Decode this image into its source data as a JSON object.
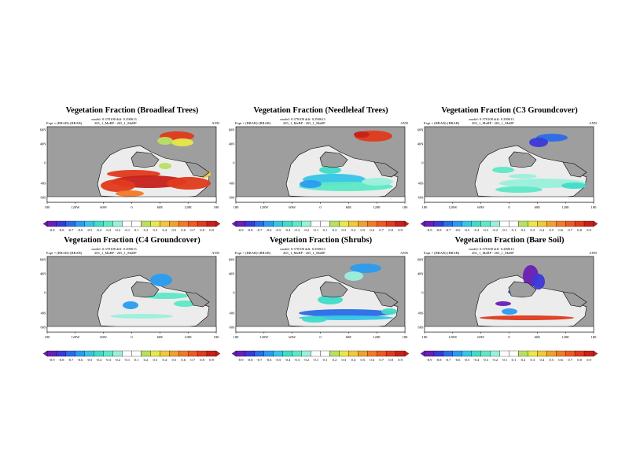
{
  "common": {
    "model_line": "model: 0.370108 diff: 0.290613",
    "expt_label": "Expt = (BRAB)-(BRAB)",
    "case_name": "265_1_MaBP - 265_1_MaBP",
    "period": "ANN",
    "lat_ticks": [
      "60N",
      "40N",
      "0",
      "40S",
      "60S"
    ],
    "lon_ticks": [
      "180",
      "120W",
      "60W",
      "0",
      "60E",
      "120E",
      "180"
    ],
    "colorbar_labels": [
      "-0.9",
      "-0.8",
      "-0.7",
      "-0.6",
      "-0.5",
      "-0.4",
      "-0.3",
      "-0.2",
      "-0.1",
      "0.1",
      "0.2",
      "0.3",
      "0.4",
      "0.5",
      "0.6",
      "0.7",
      "0.8",
      "0.9"
    ],
    "colorbar_colors": [
      "#6a1fb5",
      "#3a3ad8",
      "#2a6ce8",
      "#2a9cf0",
      "#35c5e6",
      "#40dcc8",
      "#5ee8c6",
      "#9af0dc",
      "#ffffff",
      "#ffffff",
      "#b8e060",
      "#e8e84a",
      "#f0c83a",
      "#f0a030",
      "#f07a28",
      "#ec5a22",
      "#e03a1c",
      "#c8201a"
    ],
    "ocean_color": "#9e9e9e",
    "land_color": "#ececec"
  },
  "panels": [
    {
      "title": "Vegetation Fraction (Broadleaf Trees)"
    },
    {
      "title": "Vegetation Fraction (Needleleaf Trees)"
    },
    {
      "title": "Vegetation Fraction (C3 Groundcover)"
    },
    {
      "title": "Vegetation Fraction (C4 Groundcover)"
    },
    {
      "title": "Vegetation Fraction (Shrubs)"
    },
    {
      "title": "Vegetation Fraction (Bare Soil)"
    }
  ],
  "chart_data": {
    "type": "heatmap",
    "panel_count": 6,
    "fields": [
      "Broadleaf Trees",
      "Needleleaf Trees",
      "C3 Groundcover",
      "C4 Groundcover",
      "Shrubs",
      "Bare Soil"
    ],
    "colorbar_range": [
      -0.9,
      0.9
    ],
    "x_axis": "longitude",
    "y_axis": "latitude"
  }
}
